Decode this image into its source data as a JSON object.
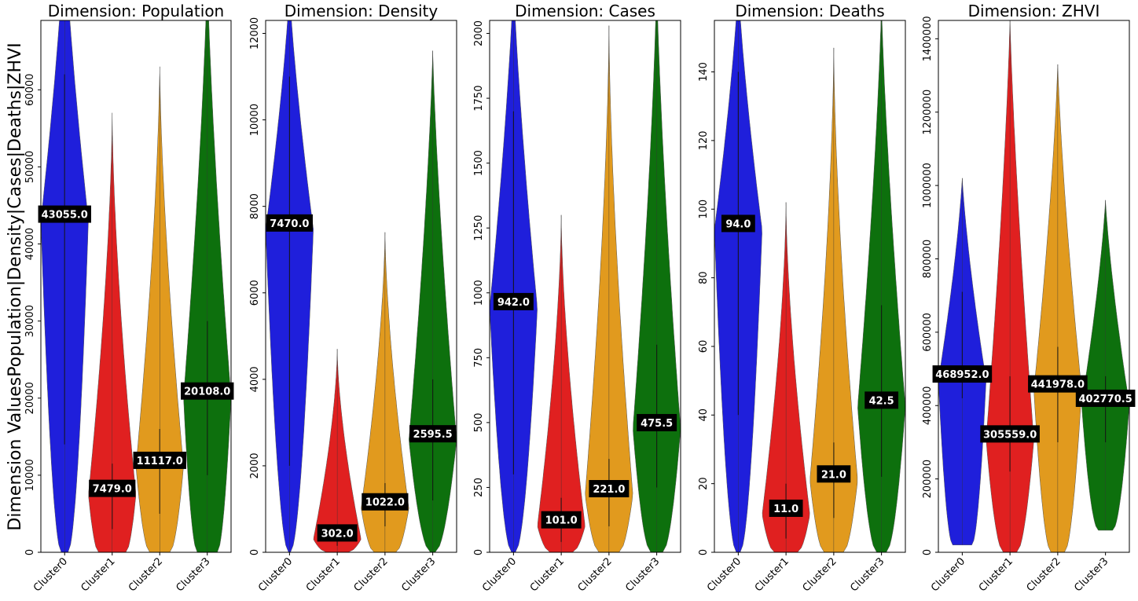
{
  "figure": {
    "ylabel": "Dimension ValuesPopulation|Density|Cases|Deaths|ZHVI"
  },
  "chart_data": [
    {
      "type": "violin",
      "title": "Dimension: Population",
      "categories": [
        "Cluster0",
        "Cluster1",
        "Cluster2",
        "Cluster3"
      ],
      "colors": [
        "#1f1fdb",
        "#e02020",
        "#e19a1e",
        "#0d700d"
      ],
      "ylim": [
        0,
        69000
      ],
      "yticks": [
        0,
        10000,
        20000,
        30000,
        40000,
        50000,
        60000
      ],
      "medians": [
        43055.0,
        7479.0,
        11117.0,
        20108.0
      ],
      "median_labels": [
        "43055.0",
        "7479.0",
        "11117.0",
        "20108.0"
      ],
      "quartiles": [
        [
          14000,
          62000
        ],
        [
          3000,
          11500
        ],
        [
          5000,
          16000
        ],
        [
          10000,
          30000
        ]
      ],
      "ranges": [
        [
          0,
          80000
        ],
        [
          0,
          57000
        ],
        [
          0,
          63000
        ],
        [
          0,
          75000
        ]
      ],
      "max_width": [
        [
          0.14,
          0.5
        ],
        [
          0.57,
          0.05
        ],
        [
          0.42,
          0.13
        ],
        [
          0.42,
          0.4
        ]
      ]
    },
    {
      "type": "violin",
      "title": "Dimension: Density",
      "categories": [
        "Cluster0",
        "Cluster1",
        "Cluster2",
        "Cluster3"
      ],
      "colors": [
        "#1f1fdb",
        "#e02020",
        "#e19a1e",
        "#0d700d"
      ],
      "ylim": [
        0,
        12300
      ],
      "yticks": [
        0,
        2000,
        4000,
        6000,
        8000,
        10000,
        12000
      ],
      "medians": [
        7470.0,
        302.0,
        1022.0,
        2595.5
      ],
      "median_labels": [
        "7470.0",
        "302.0",
        "1022.0",
        "2595.5"
      ],
      "quartiles": [
        [
          2000,
          11000
        ],
        [
          150,
          600
        ],
        [
          600,
          1600
        ],
        [
          1200,
          4000
        ]
      ],
      "ranges": [
        [
          0,
          13000
        ],
        [
          0,
          4700
        ],
        [
          0,
          7400
        ],
        [
          0,
          11600
        ]
      ],
      "max_width": [
        [
          0.04,
          0.5
        ],
        [
          0.45,
          0.02
        ],
        [
          0.45,
          0.07
        ],
        [
          0.1,
          0.4
        ]
      ]
    },
    {
      "type": "violin",
      "title": "Dimension: Cases",
      "categories": [
        "Cluster0",
        "Cluster1",
        "Cluster2",
        "Cluster3"
      ],
      "colors": [
        "#1f1fdb",
        "#e02020",
        "#e19a1e",
        "#0d700d"
      ],
      "ylim": [
        0,
        2050
      ],
      "yticks": [
        0,
        250,
        500,
        750,
        1000,
        1250,
        1500,
        1750,
        2000
      ],
      "medians": [
        942.0,
        101.0,
        221.0,
        475.5
      ],
      "median_labels": [
        "942.0",
        "101.0",
        "221.0",
        "475.5"
      ],
      "quartiles": [
        [
          300,
          1700
        ],
        [
          40,
          210
        ],
        [
          100,
          360
        ],
        [
          250,
          800
        ]
      ],
      "ranges": [
        [
          0,
          2200
        ],
        [
          0,
          1300
        ],
        [
          0,
          2030
        ],
        [
          0,
          2200
        ]
      ],
      "max_width": [
        [
          0.08,
          0.5
        ],
        [
          0.47,
          0.03
        ],
        [
          0.42,
          0.05
        ],
        [
          0.25,
          0.35
        ]
      ]
    },
    {
      "type": "violin",
      "title": "Dimension: Deaths",
      "categories": [
        "Cluster0",
        "Cluster1",
        "Cluster2",
        "Cluster3"
      ],
      "colors": [
        "#1f1fdb",
        "#e02020",
        "#e19a1e",
        "#0d700d"
      ],
      "ylim": [
        0,
        155
      ],
      "yticks": [
        0,
        20,
        40,
        60,
        80,
        100,
        120,
        140
      ],
      "medians": [
        94.0,
        11.0,
        21.0,
        42.5
      ],
      "median_labels": [
        "94.0",
        "11.0",
        "21.0",
        "42.5"
      ],
      "quartiles": [
        [
          40,
          140
        ],
        [
          4,
          20
        ],
        [
          10,
          32
        ],
        [
          22,
          72
        ]
      ],
      "ranges": [
        [
          0,
          165
        ],
        [
          0,
          102
        ],
        [
          0,
          147
        ],
        [
          0,
          160
        ]
      ],
      "max_width": [
        [
          0.08,
          0.5
        ],
        [
          0.48,
          0.03
        ],
        [
          0.4,
          0.05
        ],
        [
          0.2,
          0.4
        ]
      ]
    },
    {
      "type": "violin",
      "title": "Dimension: ZHVI",
      "categories": [
        "Cluster0",
        "Cluster1",
        "Cluster2",
        "Cluster3"
      ],
      "colors": [
        "#1f1fdb",
        "#e02020",
        "#e19a1e",
        "#0d700d"
      ],
      "ylim": [
        0,
        1450000
      ],
      "yticks": [
        0,
        200000,
        400000,
        600000,
        800000,
        1000000,
        1200000,
        1400000
      ],
      "medians": [
        468952.0,
        305559.0,
        441978.0,
        402770.5
      ],
      "median_labels": [
        "468952.0",
        "305559.0",
        "441978.0",
        "402770.5"
      ],
      "quartiles": [
        [
          420000,
          710000
        ],
        [
          220000,
          480000
        ],
        [
          300000,
          560000
        ],
        [
          300000,
          480000
        ]
      ],
      "ranges": [
        [
          20000,
          1020000
        ],
        [
          0,
          1450000
        ],
        [
          0,
          1330000
        ],
        [
          60000,
          960000
        ]
      ],
      "max_width": [
        [
          0.4,
          0.45
        ],
        [
          0.28,
          0.45
        ],
        [
          0.28,
          0.4
        ],
        [
          0.3,
          0.45
        ]
      ]
    }
  ]
}
